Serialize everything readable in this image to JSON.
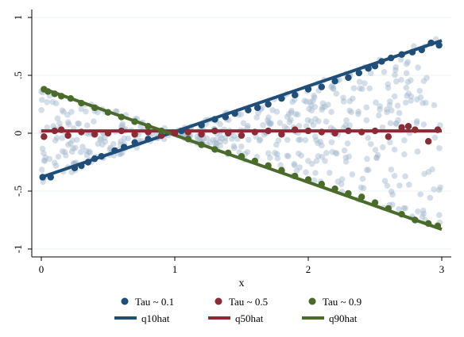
{
  "chart_data": {
    "type": "scatter",
    "title": "",
    "xlabel": "x",
    "ylabel": "",
    "xlim": [
      0,
      3
    ],
    "ylim": [
      -1,
      1
    ],
    "x_ticks": [
      0,
      1,
      2,
      3
    ],
    "x_tick_labels": [
      "0",
      "1",
      "2",
      "3"
    ],
    "y_ticks": [
      -1,
      -0.5,
      0,
      0.5,
      1
    ],
    "y_tick_labels": [
      "-1",
      "-.5",
      "0",
      ".5",
      "1"
    ],
    "grid": "horizontal",
    "legend_placement": "bottom",
    "background_points": {
      "description_color": "#9fb6cc",
      "count": 520
    },
    "series": [
      {
        "name": "Tau ~ 0.1",
        "kind": "scatter",
        "color": "#1f4e79",
        "x": [
          0.01,
          0.07,
          0.25,
          0.3,
          0.35,
          0.4,
          0.45,
          0.55,
          0.62,
          0.7,
          0.8,
          0.9,
          1.05,
          1.2,
          1.3,
          1.38,
          1.45,
          1.55,
          1.62,
          1.7,
          1.8,
          1.9,
          2.0,
          2.1,
          2.2,
          2.3,
          2.38,
          2.45,
          2.5,
          2.55,
          2.62,
          2.7,
          2.78,
          2.85,
          2.92,
          2.98
        ],
        "y": [
          -0.38,
          -0.38,
          -0.3,
          -0.28,
          -0.25,
          -0.22,
          -0.2,
          -0.15,
          -0.12,
          -0.08,
          -0.05,
          -0.02,
          0.02,
          0.07,
          0.12,
          0.14,
          0.17,
          0.2,
          0.22,
          0.25,
          0.3,
          0.33,
          0.38,
          0.4,
          0.45,
          0.48,
          0.52,
          0.56,
          0.58,
          0.62,
          0.65,
          0.68,
          0.7,
          0.72,
          0.78,
          0.76
        ]
      },
      {
        "name": "Tau ~ 0.5",
        "kind": "scatter",
        "color": "#8b2b36",
        "x": [
          0.02,
          0.1,
          0.15,
          0.2,
          0.3,
          0.4,
          0.5,
          0.6,
          0.7,
          0.8,
          0.9,
          1.0,
          1.1,
          1.2,
          1.3,
          1.4,
          1.5,
          1.6,
          1.7,
          1.8,
          1.9,
          2.0,
          2.1,
          2.2,
          2.3,
          2.4,
          2.5,
          2.6,
          2.7,
          2.75,
          2.8,
          2.9,
          2.97
        ],
        "y": [
          -0.03,
          0.02,
          0.03,
          -0.02,
          0.01,
          -0.01,
          0.0,
          0.02,
          -0.01,
          0.01,
          -0.02,
          0.0,
          0.01,
          -0.01,
          0.02,
          0.0,
          -0.02,
          0.01,
          0.02,
          -0.01,
          0.03,
          0.02,
          0.01,
          0.0,
          0.02,
          0.01,
          0.02,
          -0.03,
          0.05,
          0.06,
          0.03,
          -0.07,
          0.03
        ]
      },
      {
        "name": "Tau ~ 0.9",
        "kind": "scatter",
        "color": "#4a6b2a",
        "x": [
          0.02,
          0.05,
          0.1,
          0.15,
          0.22,
          0.3,
          0.4,
          0.5,
          0.6,
          0.7,
          0.8,
          0.9,
          1.1,
          1.2,
          1.3,
          1.4,
          1.5,
          1.6,
          1.7,
          1.8,
          1.9,
          2.0,
          2.1,
          2.2,
          2.3,
          2.4,
          2.5,
          2.6,
          2.7,
          2.8,
          2.9,
          2.97
        ],
        "y": [
          0.38,
          0.36,
          0.34,
          0.32,
          0.3,
          0.26,
          0.22,
          0.18,
          0.14,
          0.1,
          0.06,
          0.02,
          -0.05,
          -0.1,
          -0.14,
          -0.17,
          -0.2,
          -0.24,
          -0.28,
          -0.32,
          -0.37,
          -0.4,
          -0.44,
          -0.48,
          -0.52,
          -0.55,
          -0.6,
          -0.65,
          -0.7,
          -0.75,
          -0.78,
          -0.8
        ]
      },
      {
        "name": "q10hat",
        "kind": "line",
        "color": "#1f4e79",
        "x": [
          0,
          3
        ],
        "y": [
          -0.38,
          0.8
        ]
      },
      {
        "name": "q50hat",
        "kind": "line",
        "color": "#8b2b36",
        "x": [
          0,
          3
        ],
        "y": [
          0.02,
          0.02
        ]
      },
      {
        "name": "q90hat",
        "kind": "line",
        "color": "#4a6b2a",
        "x": [
          0,
          3
        ],
        "y": [
          0.39,
          -0.83
        ]
      }
    ],
    "legend": [
      {
        "label": "Tau ~ 0.1",
        "symbol": "dot",
        "color": "#1f4e79"
      },
      {
        "label": "Tau ~ 0.5",
        "symbol": "dot",
        "color": "#8b2b36"
      },
      {
        "label": "Tau ~ 0.9",
        "symbol": "dot",
        "color": "#4a6b2a"
      },
      {
        "label": "q10hat",
        "symbol": "line",
        "color": "#1f4e79"
      },
      {
        "label": "q50hat",
        "symbol": "line",
        "color": "#8b2b36"
      },
      {
        "label": "q90hat",
        "symbol": "line",
        "color": "#4a6b2a"
      }
    ]
  }
}
